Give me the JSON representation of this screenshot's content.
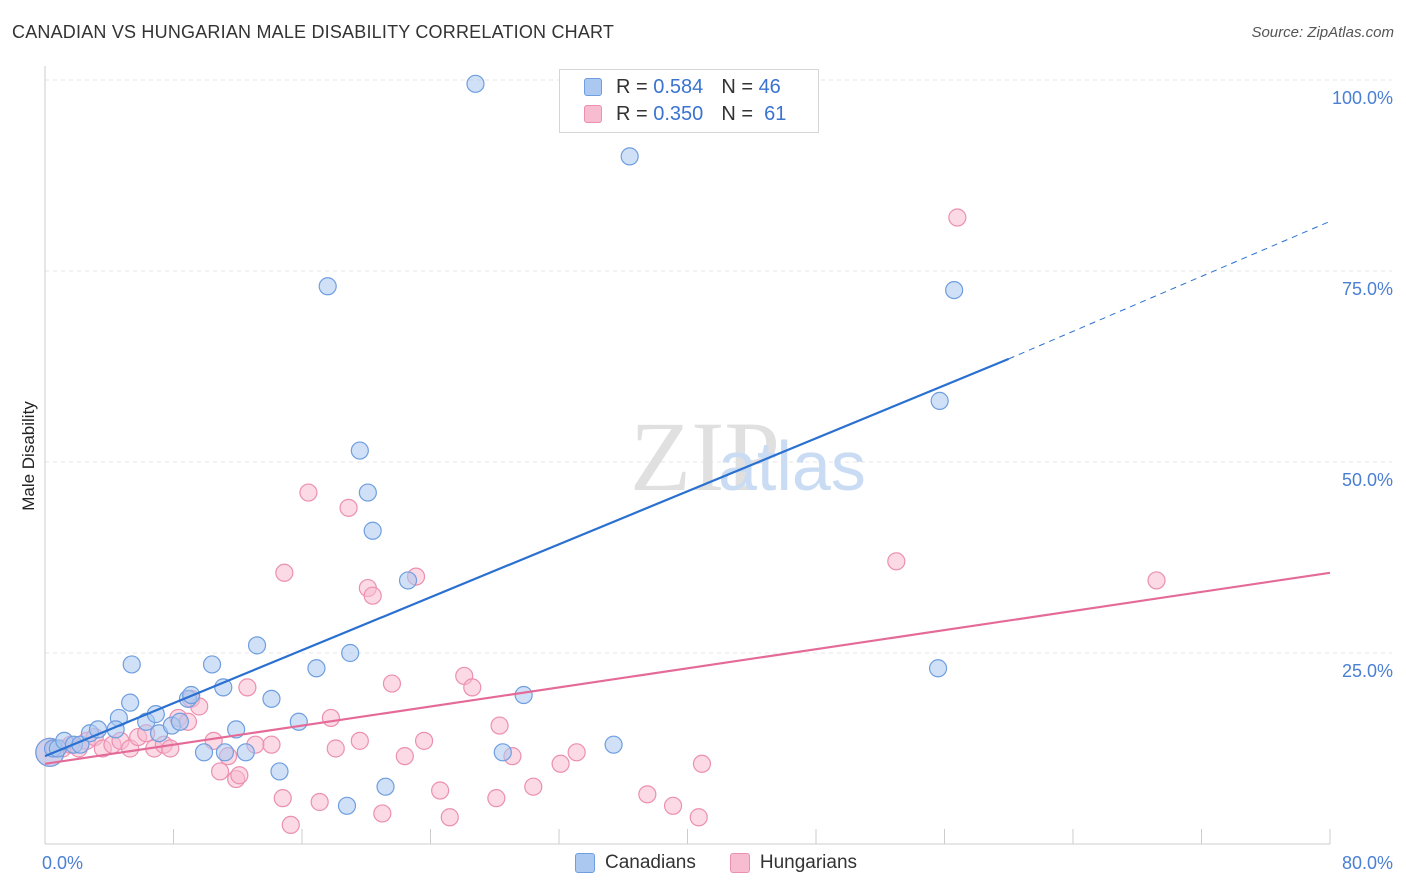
{
  "title": "CANADIAN VS HUNGARIAN MALE DISABILITY CORRELATION CHART",
  "source": "Source: ZipAtlas.com",
  "watermark": {
    "zip": "ZIP",
    "atlas": "atlas"
  },
  "legend": {
    "r_label": "R =",
    "n_label": "N =",
    "canadians": {
      "r": "0.584",
      "n": "46"
    },
    "hungarians": {
      "r": "0.350",
      "n": "61"
    }
  },
  "colors": {
    "canadians_fill": "#aac8f0",
    "canadians_stroke": "#6f9ee0",
    "canadians_line": "#2a70d0",
    "hungarians_fill": "#f8bcd0",
    "hungarians_stroke": "#ec8fb0",
    "hungarians_line": "#e46a98",
    "tick_label": "#4a7fd4"
  },
  "chart_data": {
    "type": "scatter",
    "title": "CANADIAN VS HUNGARIAN MALE DISABILITY CORRELATION CHART",
    "xlabel": "",
    "ylabel": "Male Disability",
    "xlim": [
      0,
      80
    ],
    "ylim": [
      0,
      100
    ],
    "x_tick_labels": [
      "0.0%",
      "80.0%"
    ],
    "y_ticks": [
      25,
      50,
      75,
      100
    ],
    "y_tick_labels": [
      "25.0%",
      "50.0%",
      "75.0%",
      "100.0%"
    ],
    "legend_labels": [
      "Canadians",
      "Hungarians"
    ],
    "series": [
      {
        "name": "Canadians",
        "r": 0.584,
        "n": 46,
        "trend": {
          "x0": 0,
          "y0": 11.5,
          "x1": 60,
          "y1": 63.5,
          "dashed_to_x": 80,
          "dashed_to_y": 81.5
        },
        "points": [
          [
            0.3,
            12
          ],
          [
            0.5,
            12.5
          ],
          [
            0.8,
            12.5
          ],
          [
            1.2,
            13.5
          ],
          [
            1.8,
            13
          ],
          [
            2.2,
            13
          ],
          [
            2.8,
            14.5
          ],
          [
            3.3,
            15
          ],
          [
            4.6,
            16.5
          ],
          [
            4.4,
            15
          ],
          [
            5.3,
            18.5
          ],
          [
            5.4,
            23.5
          ],
          [
            6.3,
            16
          ],
          [
            6.9,
            17
          ],
          [
            7.1,
            14.5
          ],
          [
            7.9,
            15.5
          ],
          [
            8.4,
            16
          ],
          [
            8.9,
            19
          ],
          [
            9.1,
            19.5
          ],
          [
            9.9,
            12
          ],
          [
            10.4,
            23.5
          ],
          [
            11.1,
            20.5
          ],
          [
            11.2,
            12
          ],
          [
            11.9,
            15
          ],
          [
            12.5,
            12
          ],
          [
            13.2,
            26
          ],
          [
            14.1,
            19
          ],
          [
            14.6,
            9.5
          ],
          [
            15.8,
            16
          ],
          [
            16.9,
            23
          ],
          [
            17.6,
            73
          ],
          [
            18.8,
            5
          ],
          [
            19.0,
            25
          ],
          [
            19.6,
            51.5
          ],
          [
            20.1,
            46
          ],
          [
            20.4,
            41
          ],
          [
            21.2,
            7.5
          ],
          [
            22.6,
            34.5
          ],
          [
            26.8,
            99.5
          ],
          [
            28.5,
            12
          ],
          [
            29.8,
            19.5
          ],
          [
            35.4,
            13
          ],
          [
            36.4,
            90
          ],
          [
            55.6,
            23
          ],
          [
            55.7,
            58
          ],
          [
            56.6,
            72.5
          ]
        ]
      },
      {
        "name": "Hungarians",
        "r": 0.35,
        "n": 61,
        "trend": {
          "x0": 0,
          "y0": 10.5,
          "x1": 80,
          "y1": 35.5
        },
        "points": [
          [
            0.3,
            12
          ],
          [
            0.6,
            12.5
          ],
          [
            1.1,
            12.5
          ],
          [
            1.6,
            13
          ],
          [
            2.1,
            12.5
          ],
          [
            2.6,
            13.5
          ],
          [
            3.1,
            14
          ],
          [
            3.6,
            12.5
          ],
          [
            4.2,
            13
          ],
          [
            4.7,
            13.5
          ],
          [
            5.3,
            12.5
          ],
          [
            5.8,
            14
          ],
          [
            6.3,
            14.5
          ],
          [
            6.8,
            12.5
          ],
          [
            7.4,
            13
          ],
          [
            7.8,
            12.5
          ],
          [
            8.3,
            16.5
          ],
          [
            8.9,
            16
          ],
          [
            9.1,
            19
          ],
          [
            9.6,
            18
          ],
          [
            10.5,
            13.5
          ],
          [
            10.9,
            9.5
          ],
          [
            11.4,
            11.5
          ],
          [
            11.9,
            8.5
          ],
          [
            12.1,
            9
          ],
          [
            12.6,
            20.5
          ],
          [
            13.1,
            13
          ],
          [
            14.1,
            13
          ],
          [
            14.8,
            6
          ],
          [
            15.3,
            2.5
          ],
          [
            14.9,
            35.5
          ],
          [
            16.4,
            46
          ],
          [
            17.1,
            5.5
          ],
          [
            17.8,
            16.5
          ],
          [
            18.1,
            12.5
          ],
          [
            18.9,
            44
          ],
          [
            19.6,
            13.5
          ],
          [
            20.1,
            33.5
          ],
          [
            20.4,
            32.5
          ],
          [
            21.0,
            4
          ],
          [
            21.6,
            21
          ],
          [
            22.4,
            11.5
          ],
          [
            23.1,
            35
          ],
          [
            23.6,
            13.5
          ],
          [
            24.6,
            7
          ],
          [
            25.2,
            3.5
          ],
          [
            26.1,
            22
          ],
          [
            26.6,
            20.5
          ],
          [
            28.1,
            6
          ],
          [
            28.3,
            15.5
          ],
          [
            29.1,
            11.5
          ],
          [
            30.4,
            7.5
          ],
          [
            32.1,
            10.5
          ],
          [
            33.1,
            12
          ],
          [
            37.5,
            6.5
          ],
          [
            39.1,
            5
          ],
          [
            40.7,
            3.5
          ],
          [
            40.9,
            10.5
          ],
          [
            53.0,
            37
          ],
          [
            56.8,
            82
          ],
          [
            69.2,
            34.5
          ]
        ]
      }
    ]
  }
}
